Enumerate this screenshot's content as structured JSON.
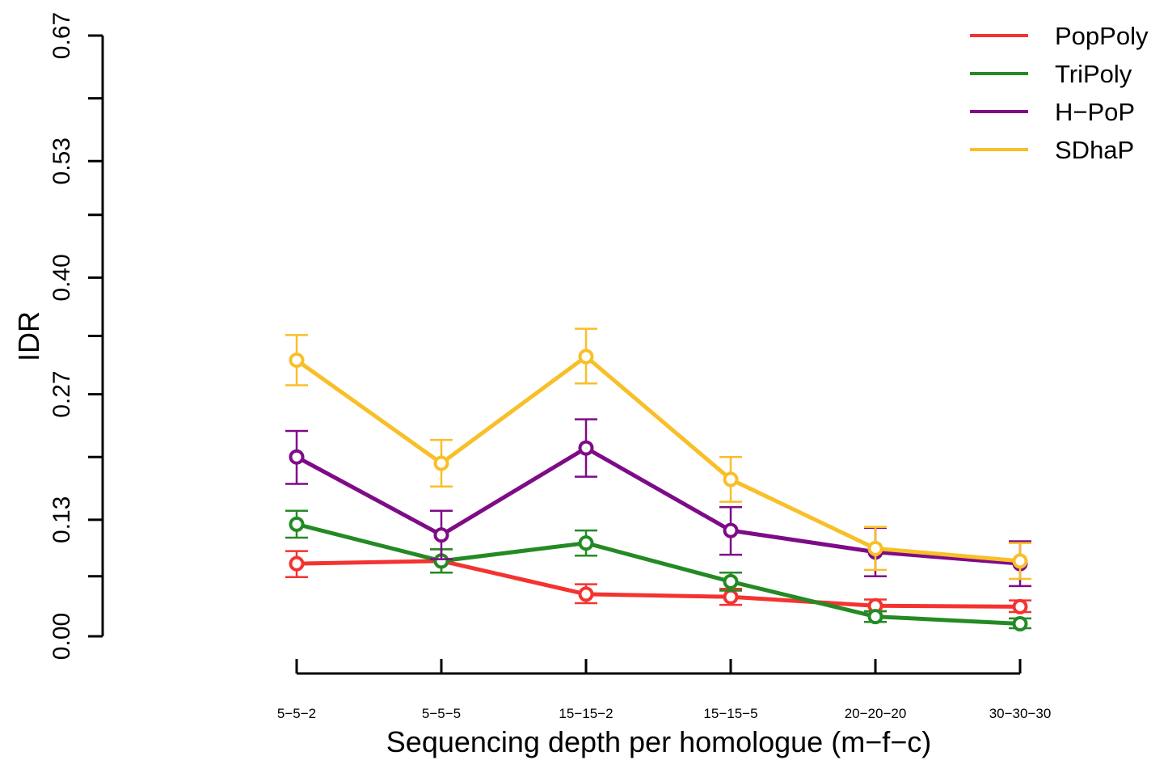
{
  "chart_data": {
    "type": "line",
    "title": "",
    "xlabel": "Sequencing depth per homologue (m−f−c)",
    "ylabel": "IDR",
    "categories": [
      "5−5−2",
      "5−5−5",
      "15−15−2",
      "15−15−5",
      "20−20−20",
      "30−30−30"
    ],
    "ylim": [
      0,
      0.67
    ],
    "yticks": [
      0.0,
      0.067,
      0.13,
      0.2,
      0.27,
      0.335,
      0.4,
      0.47,
      0.53,
      0.6,
      0.67
    ],
    "ytick_labels": [
      "0.00",
      "",
      "0.13",
      "",
      "0.27",
      "",
      "0.40",
      "",
      "0.53",
      "",
      "0.67"
    ],
    "grid": false,
    "legend_position": "top-right",
    "series": [
      {
        "name": "PopPoly",
        "color": "#f43331",
        "values": [
          0.081,
          0.084,
          0.047,
          0.044,
          0.034,
          0.033
        ],
        "err_low": [
          0.066,
          0.071,
          0.037,
          0.035,
          0.028,
          0.027
        ],
        "err_high": [
          0.095,
          0.097,
          0.058,
          0.053,
          0.041,
          0.04
        ]
      },
      {
        "name": "TriPoly",
        "color": "#248a24",
        "values": [
          0.125,
          0.084,
          0.104,
          0.061,
          0.022,
          0.014
        ],
        "err_low": [
          0.11,
          0.071,
          0.09,
          0.051,
          0.016,
          0.009
        ],
        "err_high": [
          0.14,
          0.097,
          0.118,
          0.071,
          0.028,
          0.02
        ]
      },
      {
        "name": "H−PoP",
        "color": "#7e0b87",
        "values": [
          0.2,
          0.113,
          0.21,
          0.118,
          0.094,
          0.081
        ],
        "err_low": [
          0.17,
          0.086,
          0.178,
          0.091,
          0.067,
          0.056
        ],
        "err_high": [
          0.229,
          0.14,
          0.242,
          0.144,
          0.121,
          0.106
        ]
      },
      {
        "name": "SDhaP",
        "color": "#f8bf28",
        "values": [
          0.308,
          0.193,
          0.312,
          0.175,
          0.098,
          0.084
        ],
        "err_low": [
          0.28,
          0.167,
          0.282,
          0.15,
          0.074,
          0.064
        ],
        "err_high": [
          0.336,
          0.219,
          0.343,
          0.2,
          0.122,
          0.104
        ]
      }
    ]
  }
}
